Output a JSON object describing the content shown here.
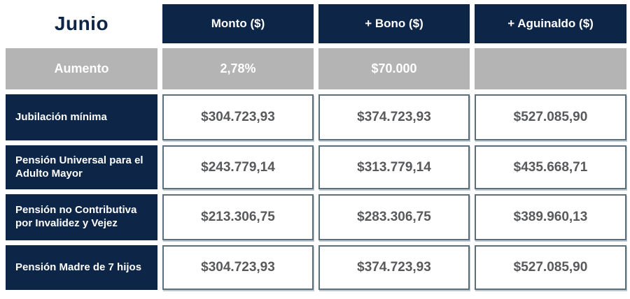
{
  "table": {
    "title": "Junio",
    "columns": [
      "Monto ($)",
      "+ Bono ($)",
      "+ Aguinaldo ($)"
    ],
    "aumento": {
      "label": "Aumento",
      "values": [
        "2,78%",
        "$70.000",
        ""
      ]
    },
    "rows": [
      {
        "label": "Jubilación mínima",
        "values": [
          "$304.723,93",
          "$374.723,93",
          "$527.085,90"
        ]
      },
      {
        "label": "Pensión Universal para el Adulto Mayor",
        "values": [
          "$243.779,14",
          "$313.779,14",
          "$435.668,71"
        ]
      },
      {
        "label": "Pensión no Contributiva por Invalidez y Vejez",
        "values": [
          "$213.306,75",
          "$283.306,75",
          "$389.960,13"
        ]
      },
      {
        "label": "Pensión Madre de 7 hijos",
        "values": [
          "$304.723,93",
          "$374.723,93",
          "$527.085,90"
        ]
      }
    ],
    "colors": {
      "navy": "#0d2546",
      "gray": "#b4b4b4",
      "value_text": "#58595b",
      "cell_border": "#5b6f7d"
    }
  },
  "chart_data": {
    "type": "table",
    "title": "Junio",
    "columns": [
      "",
      "Monto ($)",
      "+ Bono ($)",
      "+ Aguinaldo ($)"
    ],
    "rows": [
      [
        "Aumento",
        "2,78%",
        "$70.000",
        ""
      ],
      [
        "Jubilación mínima",
        "$304.723,93",
        "$374.723,93",
        "$527.085,90"
      ],
      [
        "Pensión Universal para el Adulto Mayor",
        "$243.779,14",
        "$313.779,14",
        "$435.668,71"
      ],
      [
        "Pensión no Contributiva por Invalidez y Vejez",
        "$213.306,75",
        "$283.306,75",
        "$389.960,13"
      ],
      [
        "Pensión Madre de 7 hijos",
        "$304.723,93",
        "$374.723,93",
        "$527.085,90"
      ]
    ],
    "layout_hints": {
      "header_style": "navy background, white bold text",
      "aumento_row_style": "gray background, white bold text",
      "value_cells": "white background, slate border, gray bold text"
    }
  }
}
